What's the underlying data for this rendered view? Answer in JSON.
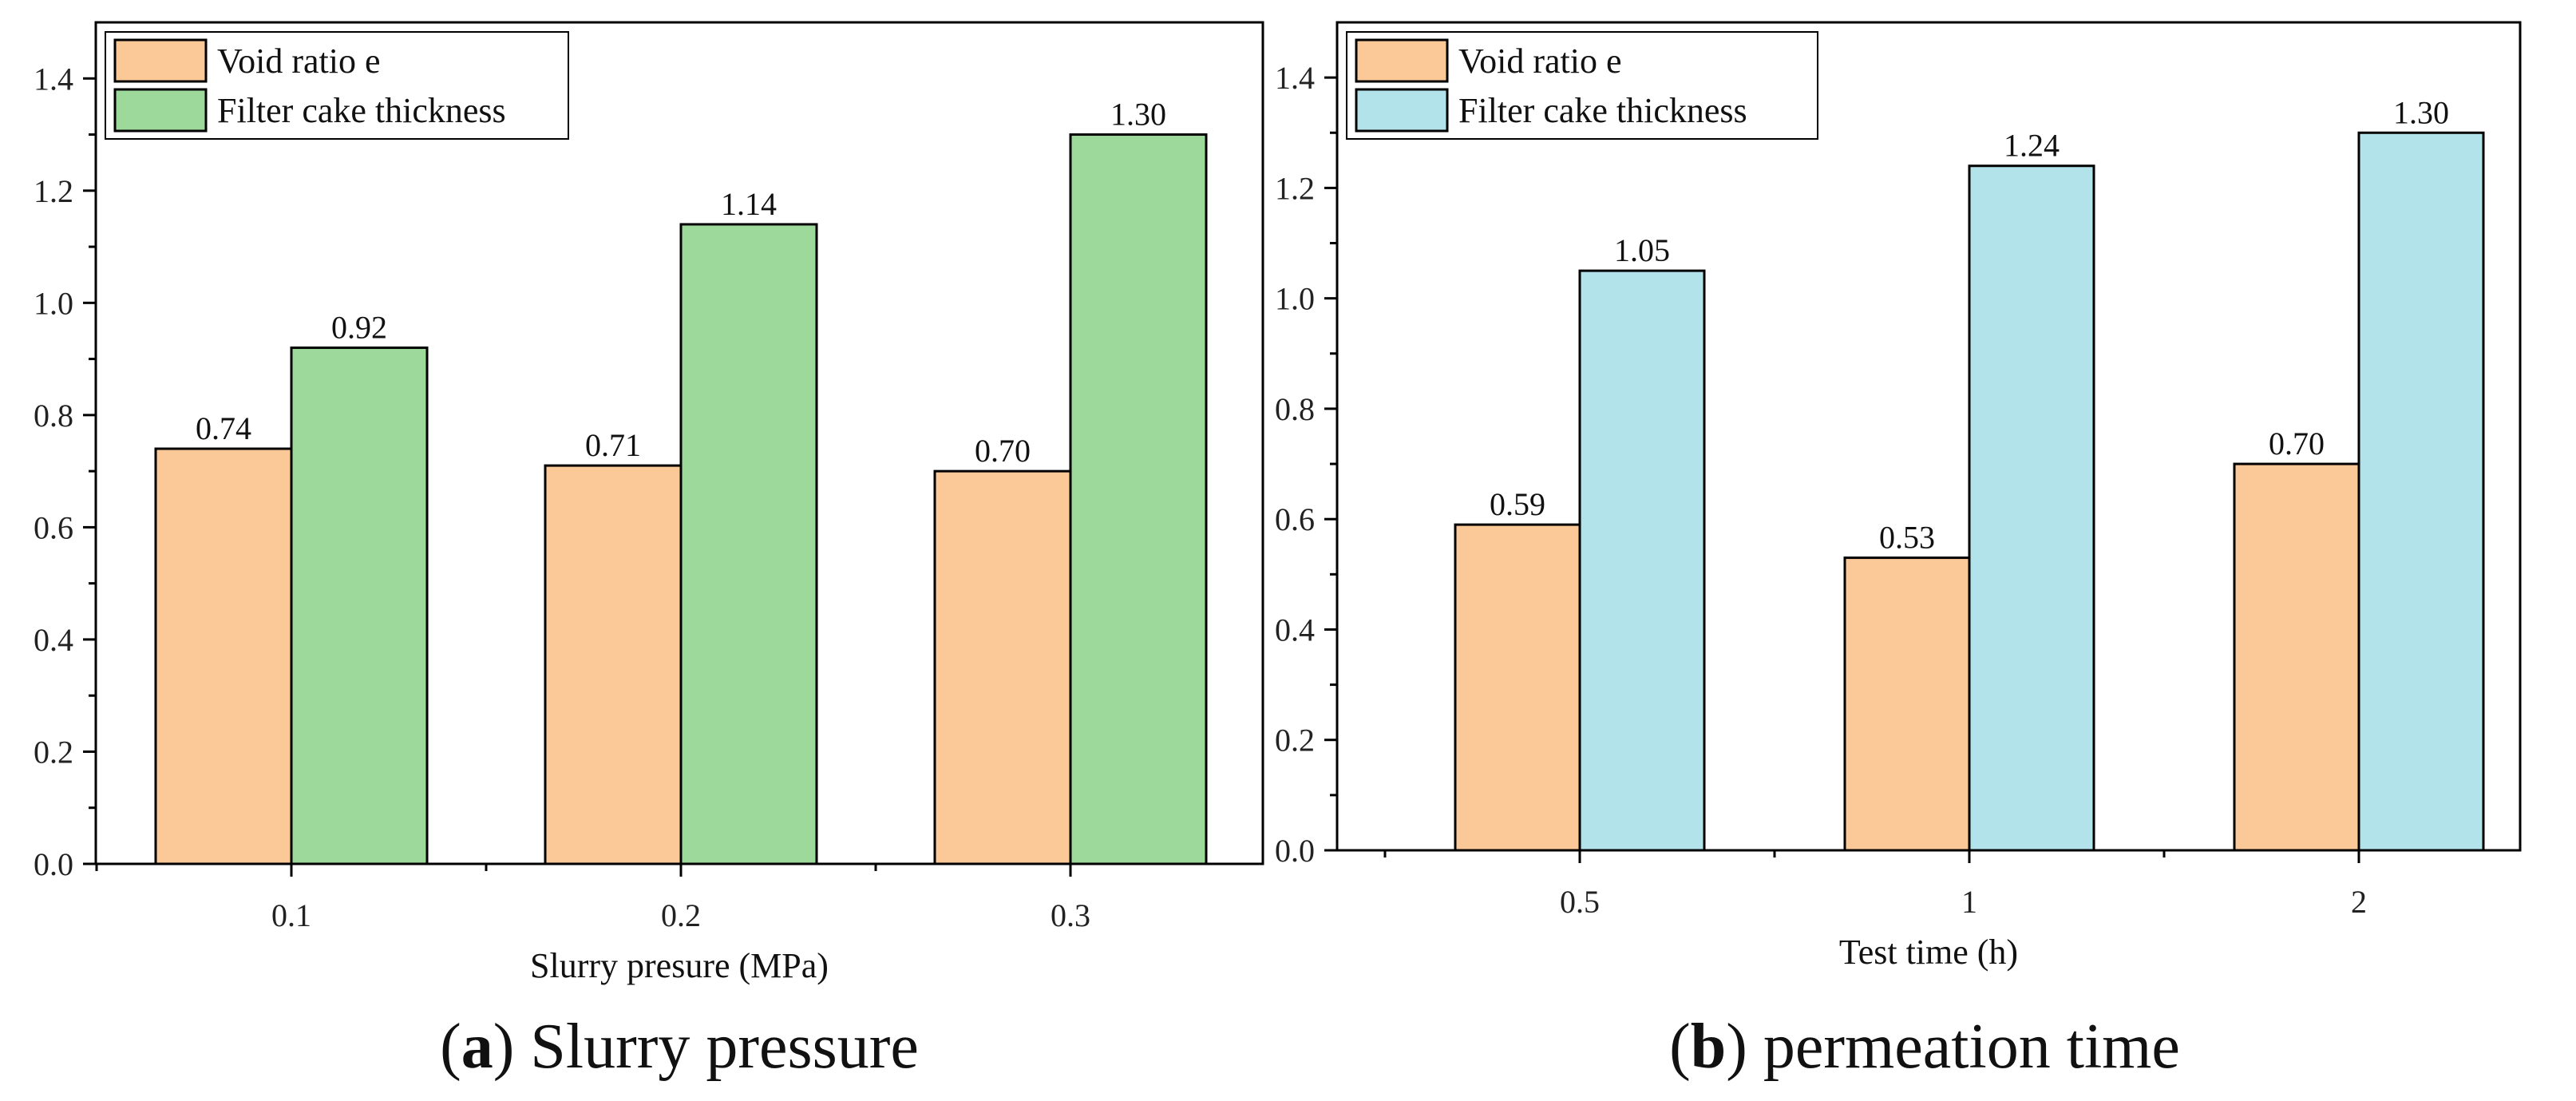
{
  "chart_data": [
    {
      "type": "bar",
      "categories": [
        "0.1",
        "0.2",
        "0.3"
      ],
      "series": [
        {
          "name": "Void ratio e",
          "values": [
            0.74,
            0.71,
            0.7
          ],
          "labels": [
            "0.74",
            "0.71",
            "0.70"
          ],
          "color": "#FBC897"
        },
        {
          "name": "Filter cake thickness",
          "values": [
            0.92,
            1.14,
            1.3
          ],
          "labels": [
            "0.92",
            "1.14",
            "1.30"
          ],
          "color": "#9ED99C"
        }
      ],
      "xlabel": "Slurry presure (MPa)",
      "ylabel": "",
      "ylim": [
        0,
        1.5
      ],
      "yticks": [
        "0.0",
        "0.2",
        "0.4",
        "0.6",
        "0.8",
        "1.0",
        "1.2",
        "1.4"
      ],
      "legend": "top-left",
      "caption_letter": "a",
      "caption_text": " Slurry pressure"
    },
    {
      "type": "bar",
      "categories": [
        "0.5",
        "1",
        "2"
      ],
      "series": [
        {
          "name": "Void ratio e",
          "values": [
            0.59,
            0.53,
            0.7
          ],
          "labels": [
            "0.59",
            "0.53",
            "0.70"
          ],
          "color": "#FBC897"
        },
        {
          "name": "Filter cake thickness",
          "values": [
            1.05,
            1.24,
            1.3
          ],
          "labels": [
            "1.05",
            "1.24",
            "1.30"
          ],
          "color": "#B3E3EA"
        }
      ],
      "xlabel": "Test time (h)",
      "ylabel": "",
      "ylim": [
        0,
        1.5
      ],
      "yticks": [
        "0.0",
        "0.2",
        "0.4",
        "0.6",
        "0.8",
        "1.0",
        "1.2",
        "1.4"
      ],
      "legend": "top-left",
      "caption_letter": "b",
      "caption_text": " permeation time"
    }
  ]
}
